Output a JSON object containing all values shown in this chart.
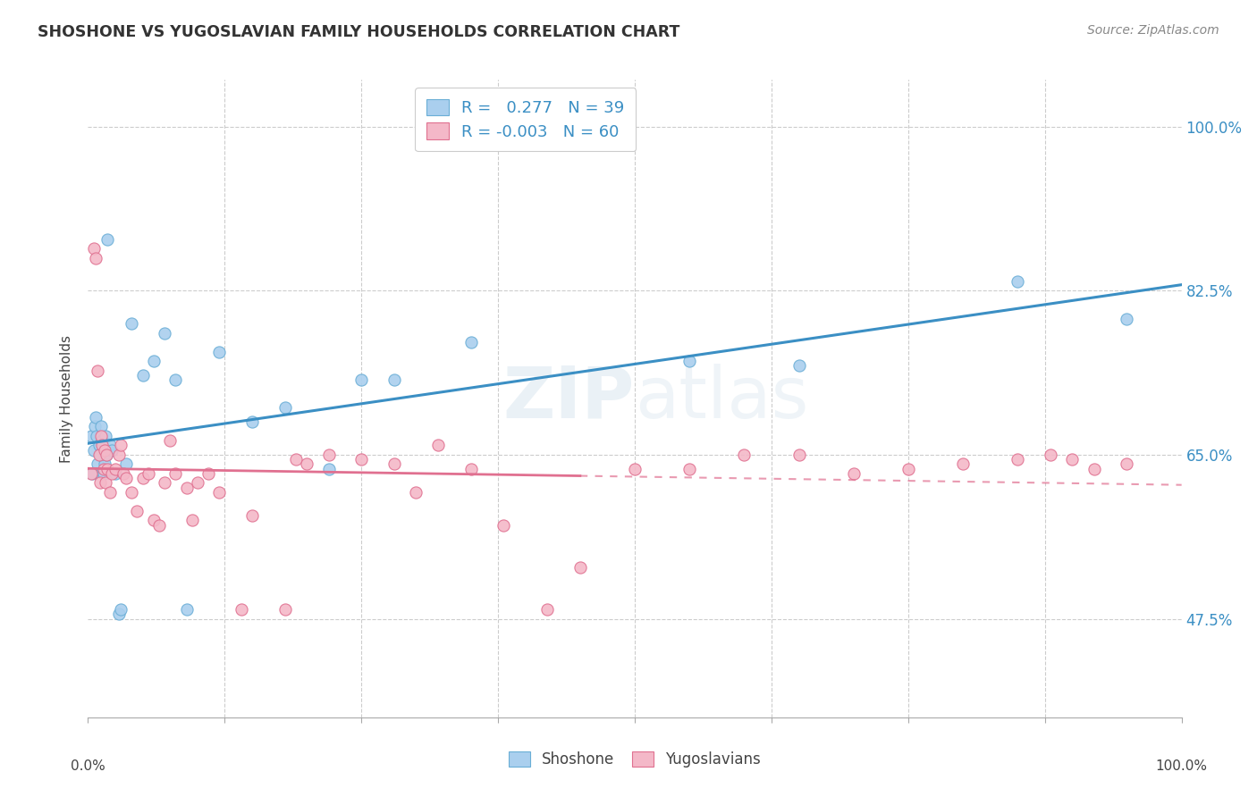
{
  "title": "SHOSHONE VS YUGOSLAVIAN FAMILY HOUSEHOLDS CORRELATION CHART",
  "source": "Source: ZipAtlas.com",
  "ylabel": "Family Households",
  "ytick_vals": [
    47.5,
    65.0,
    82.5,
    100.0
  ],
  "ytick_labels": [
    "47.5%",
    "65.0%",
    "82.5%",
    "100.0%"
  ],
  "xtick_labels_shown": [
    "0.0%",
    "100.0%"
  ],
  "x_min": 0.0,
  "x_max": 100.0,
  "y_min": 37.0,
  "y_max": 105.0,
  "shoshone_color": "#aacfee",
  "shoshone_edge_color": "#6aaed6",
  "yugoslavian_color": "#f4b8c8",
  "yugoslavian_edge_color": "#e07090",
  "shoshone_line_color": "#3b8fc4",
  "yugoslavian_line_color": "#e07090",
  "legend_label1": "R =   0.277   N = 39",
  "legend_label2": "R = -0.003   N = 60",
  "watermark_text": "ZIPatlas",
  "shoshone_x": [
    0.3,
    0.4,
    0.5,
    0.6,
    0.7,
    0.8,
    0.9,
    1.0,
    1.1,
    1.2,
    1.3,
    1.4,
    1.5,
    1.6,
    1.7,
    1.8,
    2.0,
    2.2,
    2.5,
    2.8,
    3.0,
    3.5,
    4.0,
    5.0,
    6.0,
    7.0,
    8.0,
    9.0,
    12.0,
    15.0,
    18.0,
    22.0,
    25.0,
    28.0,
    35.0,
    55.0,
    65.0,
    85.0,
    95.0
  ],
  "shoshone_y": [
    67.0,
    63.0,
    65.5,
    68.0,
    69.0,
    67.0,
    64.0,
    66.0,
    65.0,
    68.0,
    66.5,
    63.0,
    64.0,
    67.0,
    65.0,
    88.0,
    66.0,
    65.5,
    63.0,
    48.0,
    48.5,
    64.0,
    79.0,
    73.5,
    75.0,
    78.0,
    73.0,
    48.5,
    76.0,
    68.5,
    70.0,
    63.5,
    73.0,
    73.0,
    77.0,
    75.0,
    74.5,
    83.5,
    79.5
  ],
  "yugoslavian_x": [
    0.3,
    0.5,
    0.7,
    0.9,
    1.0,
    1.1,
    1.2,
    1.3,
    1.4,
    1.5,
    1.6,
    1.7,
    1.8,
    2.0,
    2.2,
    2.5,
    2.8,
    3.0,
    3.2,
    3.5,
    4.0,
    4.5,
    5.0,
    5.5,
    6.0,
    6.5,
    7.0,
    7.5,
    8.0,
    9.0,
    9.5,
    10.0,
    11.0,
    12.0,
    14.0,
    15.0,
    18.0,
    19.0,
    20.0,
    22.0,
    25.0,
    28.0,
    30.0,
    32.0,
    35.0,
    38.0,
    42.0,
    45.0,
    50.0,
    55.0,
    60.0,
    65.0,
    70.0,
    75.0,
    80.0,
    85.0,
    88.0,
    90.0,
    92.0,
    95.0
  ],
  "yugoslavian_y": [
    63.0,
    87.0,
    86.0,
    74.0,
    65.0,
    62.0,
    67.0,
    66.0,
    63.5,
    65.5,
    62.0,
    65.0,
    63.5,
    61.0,
    63.0,
    63.5,
    65.0,
    66.0,
    63.0,
    62.5,
    61.0,
    59.0,
    62.5,
    63.0,
    58.0,
    57.5,
    62.0,
    66.5,
    63.0,
    61.5,
    58.0,
    62.0,
    63.0,
    61.0,
    48.5,
    58.5,
    48.5,
    64.5,
    64.0,
    65.0,
    64.5,
    64.0,
    61.0,
    66.0,
    63.5,
    57.5,
    48.5,
    53.0,
    63.5,
    63.5,
    65.0,
    65.0,
    63.0,
    63.5,
    64.0,
    64.5,
    65.0,
    64.5,
    63.5,
    64.0
  ]
}
